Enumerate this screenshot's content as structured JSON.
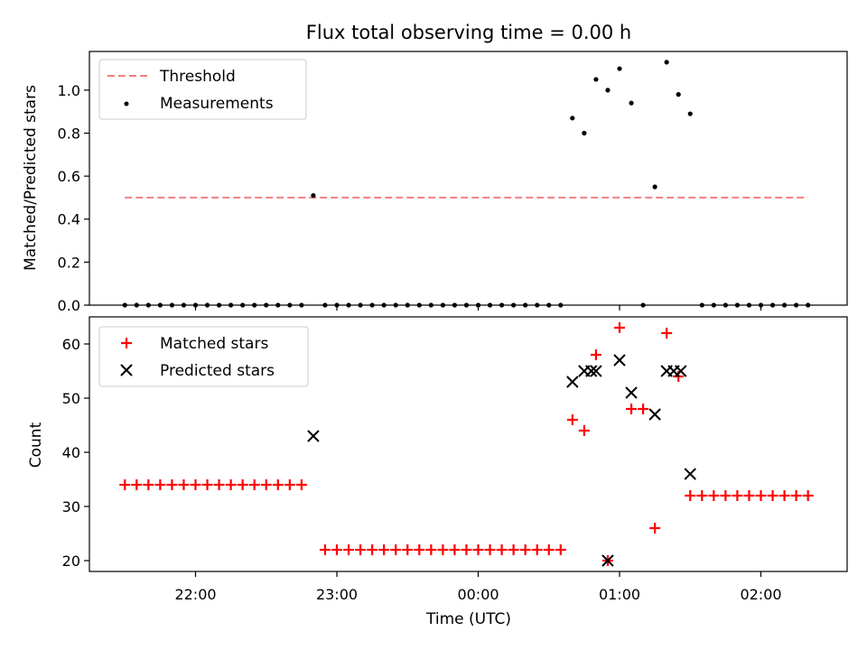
{
  "figure": {
    "title": "Flux total observing time = 0.00 h",
    "xlabel": "Time (UTC)",
    "x_ticks": [
      "22:00",
      "23:00",
      "00:00",
      "01:00",
      "02:00"
    ]
  },
  "chart_data": [
    {
      "type": "scatter",
      "ylabel": "Matched/Predicted stars",
      "ylim": [
        0,
        1.18
      ],
      "yticks": [
        "0.0",
        "0.2",
        "0.4",
        "0.6",
        "0.8",
        "1.0"
      ],
      "legend_position": "top-left",
      "threshold": {
        "name": "Threshold",
        "value": 0.5,
        "x_start": "21:30",
        "x_end": "02:20",
        "color": "#f08080"
      },
      "series": [
        {
          "name": "Measurements",
          "color": "#000000",
          "x": [
            "21:30",
            "21:35",
            "21:40",
            "21:45",
            "21:50",
            "21:55",
            "22:00",
            "22:05",
            "22:10",
            "22:15",
            "22:20",
            "22:25",
            "22:30",
            "22:35",
            "22:40",
            "22:45",
            "22:50",
            "22:55",
            "23:00",
            "23:05",
            "23:10",
            "23:15",
            "23:20",
            "23:25",
            "23:30",
            "23:35",
            "23:40",
            "23:45",
            "23:50",
            "23:55",
            "00:00",
            "00:05",
            "00:10",
            "00:15",
            "00:20",
            "00:25",
            "00:30",
            "00:35",
            "00:40",
            "00:45",
            "00:50",
            "00:55",
            "01:00",
            "01:05",
            "01:10",
            "01:15",
            "01:20",
            "01:25",
            "01:30",
            "01:35",
            "01:40",
            "01:45",
            "01:50",
            "01:55",
            "02:00",
            "02:05",
            "02:10",
            "02:15",
            "02:20"
          ],
          "y": [
            0,
            0,
            0,
            0,
            0,
            0,
            0,
            0,
            0,
            0,
            0,
            0,
            0,
            0,
            0,
            0,
            0.51,
            0,
            0,
            0,
            0,
            0,
            0,
            0,
            0,
            0,
            0,
            0,
            0,
            0,
            0,
            0,
            0,
            0,
            0,
            0,
            0,
            0,
            0.87,
            0.8,
            1.05,
            1.0,
            1.1,
            0.94,
            0,
            0.55,
            1.13,
            0.98,
            0.89,
            0,
            0,
            0,
            0,
            0,
            0,
            0,
            0,
            0,
            0
          ]
        }
      ]
    },
    {
      "type": "scatter",
      "ylabel": "Count",
      "ylim": [
        18,
        65
      ],
      "yticks": [
        "20",
        "30",
        "40",
        "50",
        "60"
      ],
      "legend_position": "top-left",
      "series": [
        {
          "name": "Matched stars",
          "marker": "plus",
          "color": "#ff0000",
          "x": [
            "21:30",
            "21:35",
            "21:40",
            "21:45",
            "21:50",
            "21:55",
            "22:00",
            "22:05",
            "22:10",
            "22:15",
            "22:20",
            "22:25",
            "22:30",
            "22:35",
            "22:40",
            "22:45",
            "22:55",
            "23:00",
            "23:05",
            "23:10",
            "23:15",
            "23:20",
            "23:25",
            "23:30",
            "23:35",
            "23:40",
            "23:45",
            "23:50",
            "23:55",
            "00:00",
            "00:05",
            "00:10",
            "00:15",
            "00:20",
            "00:25",
            "00:30",
            "00:35",
            "00:40",
            "00:45",
            "00:50",
            "00:55",
            "01:00",
            "01:05",
            "01:10",
            "01:15",
            "01:20",
            "01:25",
            "01:30",
            "01:35",
            "01:40",
            "01:45",
            "01:50",
            "01:55",
            "02:00",
            "02:05",
            "02:10",
            "02:15",
            "02:20"
          ],
          "y": [
            34,
            34,
            34,
            34,
            34,
            34,
            34,
            34,
            34,
            34,
            34,
            34,
            34,
            34,
            34,
            34,
            22,
            22,
            22,
            22,
            22,
            22,
            22,
            22,
            22,
            22,
            22,
            22,
            22,
            22,
            22,
            22,
            22,
            22,
            22,
            22,
            22,
            46,
            44,
            58,
            20,
            63,
            48,
            48,
            26,
            62,
            54,
            32,
            32,
            32,
            32,
            32,
            32,
            32,
            32,
            32,
            32,
            32
          ]
        },
        {
          "name": "Predicted stars",
          "marker": "x",
          "color": "#000000",
          "x": [
            "22:50",
            "00:40",
            "00:45",
            "00:48",
            "00:50",
            "00:55",
            "01:00",
            "01:05",
            "01:15",
            "01:20",
            "01:23",
            "01:26",
            "01:30"
          ],
          "y": [
            43,
            53,
            55,
            55,
            55,
            20,
            57,
            51,
            47,
            55,
            55,
            55,
            36
          ]
        }
      ]
    }
  ]
}
